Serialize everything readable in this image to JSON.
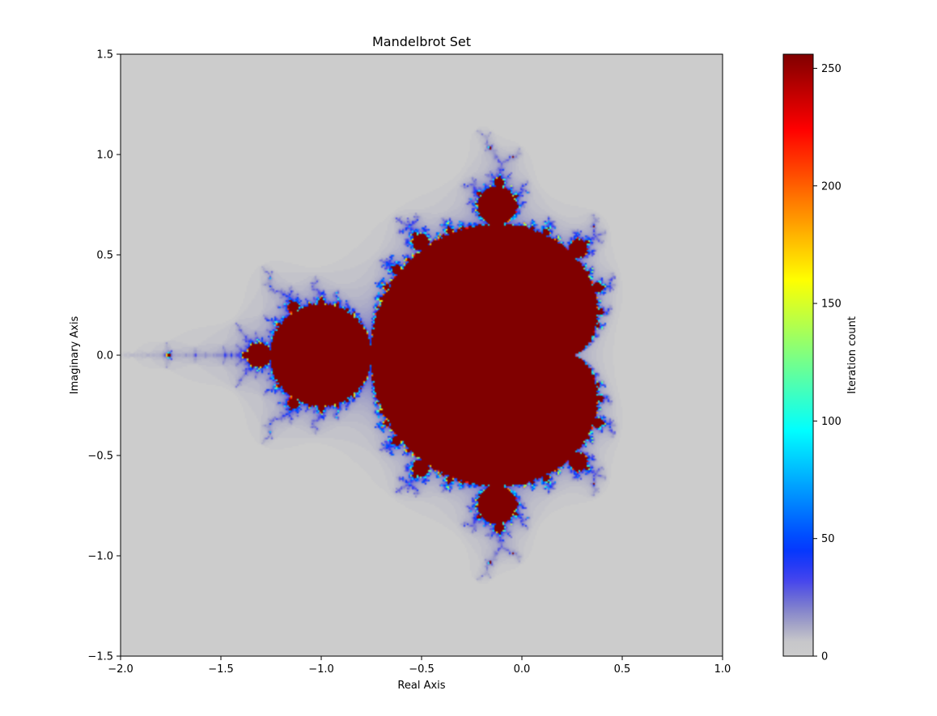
{
  "chart_data": {
    "type": "heatmap",
    "title": "Mandelbrot Set",
    "xlabel": "Real Axis",
    "ylabel": "Imaginary Axis",
    "xlim": [
      -2.0,
      1.0
    ],
    "ylim": [
      -1.5,
      1.5
    ],
    "x_ticks": [
      -2.0,
      -1.5,
      -1.0,
      -0.5,
      0.0,
      0.5,
      1.0
    ],
    "y_ticks": [
      -1.5,
      -1.0,
      -0.5,
      0.0,
      0.5,
      1.0,
      1.5
    ],
    "x_tick_labels": [
      "−2.0",
      "−1.5",
      "−1.0",
      "−0.5",
      "0.0",
      "0.5",
      "1.0"
    ],
    "y_tick_labels": [
      "−1.5",
      "−1.0",
      "−0.5",
      "0.0",
      "0.5",
      "1.0",
      "1.5"
    ],
    "max_iterations": 256,
    "grid": false,
    "colorbar": {
      "label": "Iteration count",
      "range": [
        0,
        256
      ],
      "ticks": [
        0,
        50,
        100,
        150,
        200,
        250
      ],
      "tick_labels": [
        "0",
        "50",
        "100",
        "150",
        "200",
        "250"
      ],
      "colormap": "jet (low end faded to light grey)",
      "background_color": "#cccccc",
      "set_color": "#ff0000"
    }
  }
}
